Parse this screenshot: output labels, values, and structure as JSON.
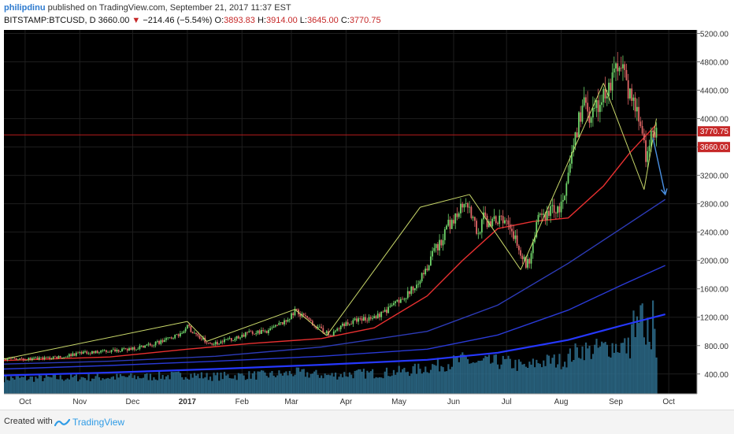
{
  "header": {
    "user": "philipdinu",
    "published": "published on TradingView.com, September 21, 2017 11:37 EST",
    "symbol": "BITSTAMP:BTCUSD, D",
    "last": "3660.00",
    "change_arrow": "▼",
    "change": "−214.46 (−5.54%)",
    "o_label": "O:",
    "o_val": "3893.83",
    "h_label": "H:",
    "h_val": "3914.00",
    "l_label": "L:",
    "l_val": "3645.00",
    "c_label": "C:",
    "c_val": "3770.75"
  },
  "footer": {
    "created": "Created with",
    "brand": "TradingView"
  },
  "colors": {
    "background": "#000000",
    "candle_up": "#6fd46a",
    "candle_down": "#e06666",
    "ma_red": "#e83030",
    "ma_blue1": "#2d3bb8",
    "ma_blue2": "#2a3ad6",
    "ma_blue3": "#2638ff",
    "trendline": "#c9d86a",
    "arrow": "#4a90e2",
    "price_label_bg": "#c62828",
    "volume": "#2e6f8e"
  },
  "chart_data": {
    "type": "line",
    "title": "BITSTAMP:BTCUSD, D",
    "y_ticks": [
      400,
      800,
      1200,
      1600,
      2000,
      2400,
      2800,
      3200,
      3600,
      4000,
      4400,
      4800,
      5200
    ],
    "y_tick_labels": [
      "400.00",
      "800.00",
      "1200.00",
      "1600.00",
      "2000.00",
      "2400.00",
      "2800.00",
      "3200.00",
      "3600.00",
      "4000.00",
      "4400.00",
      "4800.00",
      "5200.00"
    ],
    "x_labels": [
      {
        "label": "Oct",
        "day": 12,
        "bold": false
      },
      {
        "label": "Nov",
        "day": 43,
        "bold": false
      },
      {
        "label": "Dec",
        "day": 73,
        "bold": false
      },
      {
        "label": "2017",
        "day": 104,
        "bold": true
      },
      {
        "label": "Feb",
        "day": 135,
        "bold": false
      },
      {
        "label": "Mar",
        "day": 163,
        "bold": false
      },
      {
        "label": "Apr",
        "day": 194,
        "bold": false
      },
      {
        "label": "May",
        "day": 224,
        "bold": false
      },
      {
        "label": "Jun",
        "day": 255,
        "bold": false
      },
      {
        "label": "Jul",
        "day": 285,
        "bold": false
      },
      {
        "label": "Aug",
        "day": 316,
        "bold": false
      },
      {
        "label": "Sep",
        "day": 347,
        "bold": false
      },
      {
        "label": "Oct",
        "day": 377,
        "bold": false
      }
    ],
    "price_labels": [
      {
        "value": 3770.75,
        "label": "3770.75"
      },
      {
        "value": 3660.0,
        "label": "3660.00"
      }
    ],
    "price_path": [
      [
        0,
        610
      ],
      [
        15,
        612
      ],
      [
        30,
        630
      ],
      [
        45,
        700
      ],
      [
        60,
        720
      ],
      [
        75,
        760
      ],
      [
        90,
        860
      ],
      [
        100,
        960
      ],
      [
        104,
        1080
      ],
      [
        107,
        990
      ],
      [
        110,
        920
      ],
      [
        113,
        890
      ],
      [
        115,
        820
      ],
      [
        120,
        830
      ],
      [
        130,
        900
      ],
      [
        140,
        985
      ],
      [
        150,
        1000
      ],
      [
        160,
        1150
      ],
      [
        165,
        1290
      ],
      [
        170,
        1200
      ],
      [
        175,
        1110
      ],
      [
        178,
        1050
      ],
      [
        183,
        980
      ],
      [
        186,
        950
      ],
      [
        192,
        1090
      ],
      [
        200,
        1160
      ],
      [
        210,
        1200
      ],
      [
        215,
        1260
      ],
      [
        220,
        1350
      ],
      [
        224,
        1420
      ],
      [
        230,
        1550
      ],
      [
        236,
        1750
      ],
      [
        240,
        1900
      ],
      [
        244,
        2150
      ],
      [
        248,
        2250
      ],
      [
        252,
        2500
      ],
      [
        255,
        2550
      ],
      [
        259,
        2750
      ],
      [
        262,
        2870
      ],
      [
        264,
        2700
      ],
      [
        267,
        2500
      ],
      [
        269,
        2330
      ],
      [
        272,
        2600
      ],
      [
        275,
        2510
      ],
      [
        278,
        2550
      ],
      [
        282,
        2600
      ],
      [
        286,
        2460
      ],
      [
        290,
        2300
      ],
      [
        293,
        2100
      ],
      [
        296,
        1950
      ],
      [
        298,
        2000
      ],
      [
        300,
        2300
      ],
      [
        303,
        2580
      ],
      [
        306,
        2600
      ],
      [
        310,
        2730
      ],
      [
        315,
        2710
      ],
      [
        318,
        2850
      ],
      [
        321,
        3300
      ],
      [
        324,
        3700
      ],
      [
        326,
        4000
      ],
      [
        329,
        4200
      ],
      [
        332,
        3900
      ],
      [
        334,
        4050
      ],
      [
        337,
        4200
      ],
      [
        340,
        4320
      ],
      [
        343,
        4450
      ],
      [
        346,
        4620
      ],
      [
        349,
        4850
      ],
      [
        351,
        4720
      ],
      [
        353,
        4420
      ],
      [
        356,
        4300
      ],
      [
        359,
        4100
      ],
      [
        362,
        3900
      ],
      [
        364,
        3300
      ],
      [
        366,
        3580
      ],
      [
        368,
        3900
      ],
      [
        370,
        3760
      ]
    ],
    "trendlines": [
      [
        [
          0,
          610
        ],
        [
          104,
          1140
        ]
      ],
      [
        [
          104,
          1140
        ],
        [
          115,
          860
        ]
      ],
      [
        [
          115,
          860
        ],
        [
          165,
          1310
        ]
      ],
      [
        [
          165,
          1310
        ],
        [
          183,
          940
        ]
      ],
      [
        [
          183,
          940
        ],
        [
          236,
          2750
        ]
      ],
      [
        [
          236,
          2750
        ],
        [
          264,
          2930
        ]
      ],
      [
        [
          264,
          2930
        ],
        [
          293,
          1870
        ]
      ],
      [
        [
          293,
          1870
        ],
        [
          322,
          3500
        ]
      ],
      [
        [
          322,
          3500
        ],
        [
          340,
          4500
        ]
      ],
      [
        [
          340,
          4500
        ],
        [
          363,
          3000
        ]
      ],
      [
        [
          363,
          3000
        ],
        [
          370,
          4000
        ]
      ]
    ],
    "arrow": [
      [
        368,
        3730
      ],
      [
        375,
        2930
      ]
    ],
    "moving_averages": [
      {
        "color": "#e83030",
        "points": [
          [
            0,
            590
          ],
          [
            60,
            640
          ],
          [
            104,
            750
          ],
          [
            140,
            830
          ],
          [
            180,
            900
          ],
          [
            210,
            1050
          ],
          [
            240,
            1500
          ],
          [
            260,
            2000
          ],
          [
            280,
            2450
          ],
          [
            300,
            2550
          ],
          [
            320,
            2600
          ],
          [
            340,
            3050
          ],
          [
            355,
            3520
          ],
          [
            370,
            3920
          ]
        ]
      },
      {
        "color": "#2d3bb8",
        "points": [
          [
            0,
            540
          ],
          [
            60,
            580
          ],
          [
            120,
            650
          ],
          [
            180,
            780
          ],
          [
            240,
            1000
          ],
          [
            280,
            1370
          ],
          [
            320,
            1960
          ],
          [
            350,
            2450
          ],
          [
            375,
            2860
          ]
        ]
      },
      {
        "color": "#2a3ad6",
        "points": [
          [
            0,
            470
          ],
          [
            60,
            520
          ],
          [
            120,
            580
          ],
          [
            180,
            650
          ],
          [
            240,
            750
          ],
          [
            280,
            950
          ],
          [
            320,
            1300
          ],
          [
            350,
            1650
          ],
          [
            375,
            1930
          ]
        ]
      },
      {
        "color": "#2638ff",
        "points": [
          [
            0,
            380
          ],
          [
            60,
            420
          ],
          [
            120,
            470
          ],
          [
            180,
            530
          ],
          [
            240,
            600
          ],
          [
            280,
            700
          ],
          [
            320,
            880
          ],
          [
            350,
            1080
          ],
          [
            375,
            1240
          ]
        ]
      }
    ],
    "horizontal_line": 3770.75,
    "ylim": [
      120,
      5250
    ],
    "xlim": [
      0,
      393
    ]
  }
}
